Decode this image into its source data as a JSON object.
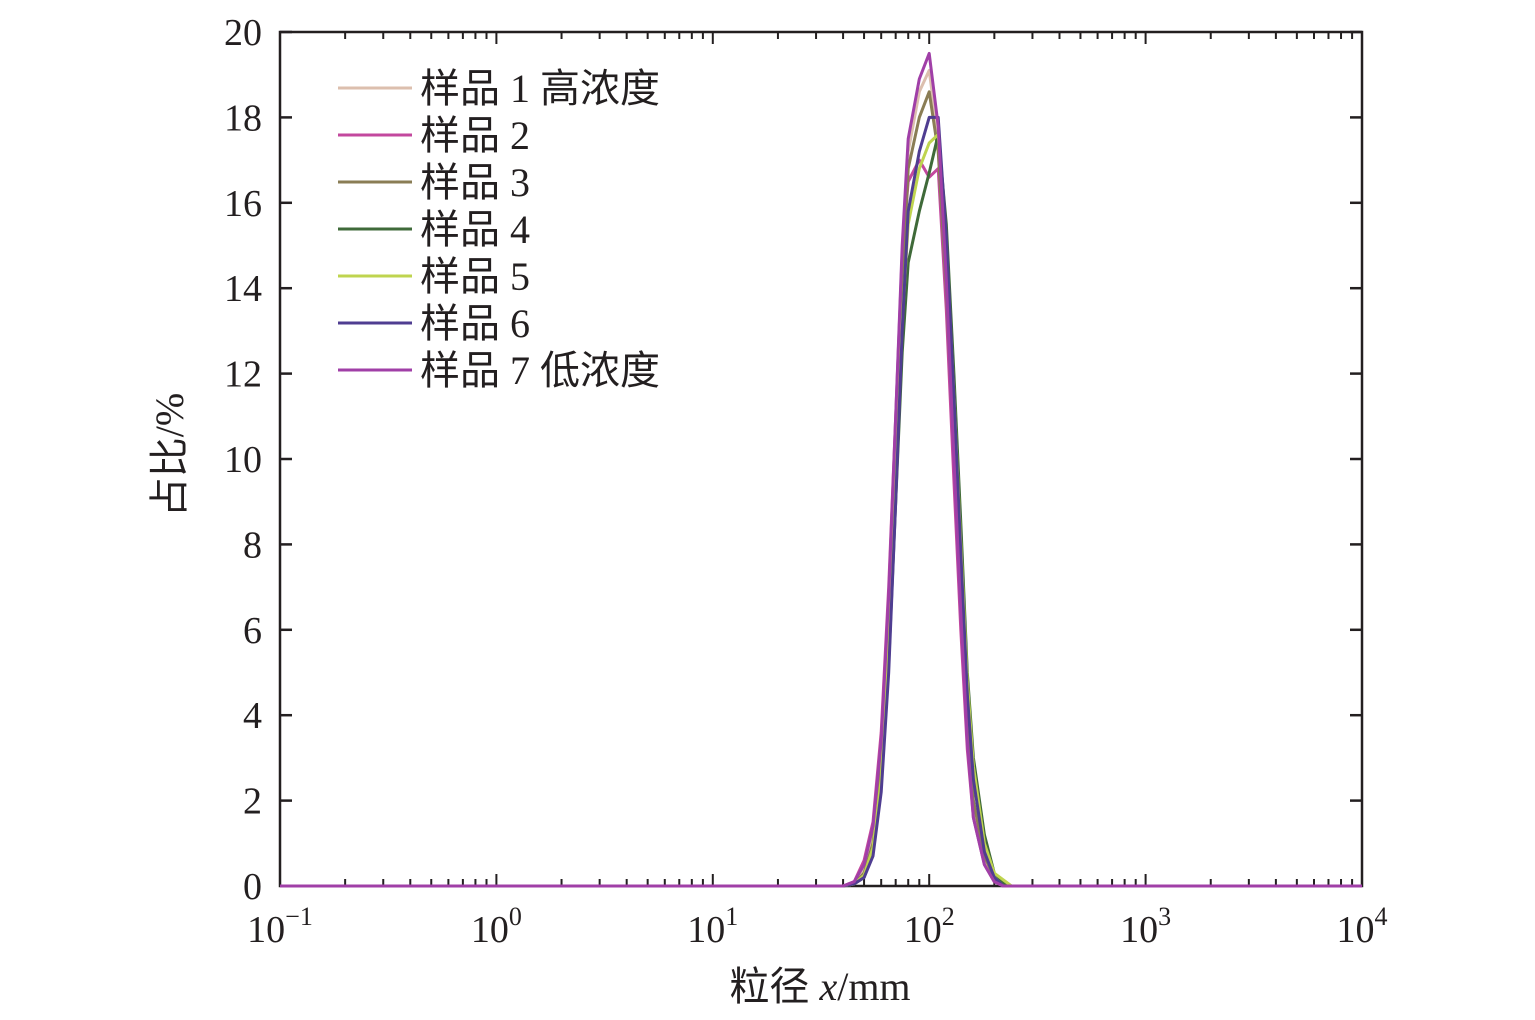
{
  "chart_data": {
    "type": "line",
    "xscale": "log",
    "xlim": [
      0.1,
      10000
    ],
    "ylim": [
      0,
      20
    ],
    "xlabel_prefix": "粒径 ",
    "xlabel_var": "x",
    "xlabel_unit": "/mm",
    "ylabel": "占比/%",
    "x_tick_bases": [
      "10",
      "10",
      "10",
      "10",
      "10",
      "10"
    ],
    "x_tick_exponents": [
      "−1",
      "0",
      "1",
      "2",
      "3",
      "4"
    ],
    "x_tick_values": [
      0.1,
      1,
      10,
      100,
      1000,
      10000
    ],
    "y_ticks": [
      0,
      2,
      4,
      6,
      8,
      10,
      12,
      14,
      16,
      18,
      20
    ],
    "legend_position": "top-left",
    "grid": false,
    "series": [
      {
        "name": "样品 1 高浓度",
        "color": "#dcbfae",
        "points": [
          [
            0.1,
            0
          ],
          [
            40,
            0
          ],
          [
            45,
            0.05
          ],
          [
            50,
            0.4
          ],
          [
            55,
            1.3
          ],
          [
            60,
            3.2
          ],
          [
            65,
            6.5
          ],
          [
            70,
            10.5
          ],
          [
            75,
            14.5
          ],
          [
            80,
            17.2
          ],
          [
            90,
            18.6
          ],
          [
            100,
            19.1
          ],
          [
            110,
            17.5
          ],
          [
            120,
            14.0
          ],
          [
            130,
            10.0
          ],
          [
            140,
            6.5
          ],
          [
            150,
            3.5
          ],
          [
            160,
            1.8
          ],
          [
            180,
            0.6
          ],
          [
            200,
            0.15
          ],
          [
            220,
            0
          ],
          [
            10000,
            0
          ]
        ]
      },
      {
        "name": "样品 2",
        "color": "#c3489e",
        "points": [
          [
            0.1,
            0
          ],
          [
            40,
            0
          ],
          [
            45,
            0.1
          ],
          [
            50,
            0.6
          ],
          [
            55,
            1.5
          ],
          [
            60,
            3.6
          ],
          [
            65,
            7.0
          ],
          [
            70,
            11.0
          ],
          [
            75,
            14.8
          ],
          [
            80,
            16.5
          ],
          [
            90,
            17.0
          ],
          [
            100,
            16.6
          ],
          [
            110,
            16.8
          ],
          [
            120,
            13.5
          ],
          [
            130,
            9.5
          ],
          [
            140,
            6.0
          ],
          [
            150,
            3.2
          ],
          [
            160,
            1.6
          ],
          [
            180,
            0.5
          ],
          [
            200,
            0.1
          ],
          [
            220,
            0
          ],
          [
            10000,
            0
          ]
        ]
      },
      {
        "name": "样品 3",
        "color": "#8a7d55",
        "points": [
          [
            0.1,
            0
          ],
          [
            40,
            0
          ],
          [
            45,
            0.05
          ],
          [
            50,
            0.3
          ],
          [
            55,
            1.0
          ],
          [
            60,
            2.8
          ],
          [
            65,
            6.0
          ],
          [
            70,
            10.0
          ],
          [
            75,
            14.0
          ],
          [
            80,
            16.8
          ],
          [
            90,
            18.0
          ],
          [
            100,
            18.6
          ],
          [
            110,
            17.2
          ],
          [
            120,
            14.0
          ],
          [
            130,
            10.2
          ],
          [
            140,
            6.8
          ],
          [
            150,
            3.8
          ],
          [
            160,
            2.0
          ],
          [
            180,
            0.7
          ],
          [
            200,
            0.2
          ],
          [
            220,
            0
          ],
          [
            10000,
            0
          ]
        ]
      },
      {
        "name": "样品 4",
        "color": "#3f6a39",
        "points": [
          [
            0.1,
            0
          ],
          [
            40,
            0
          ],
          [
            45,
            0.05
          ],
          [
            50,
            0.2
          ],
          [
            55,
            0.8
          ],
          [
            60,
            2.4
          ],
          [
            65,
            5.2
          ],
          [
            70,
            9.0
          ],
          [
            75,
            12.5
          ],
          [
            80,
            14.6
          ],
          [
            90,
            15.8
          ],
          [
            100,
            16.7
          ],
          [
            110,
            17.6
          ],
          [
            120,
            15.5
          ],
          [
            130,
            12.0
          ],
          [
            140,
            8.5
          ],
          [
            150,
            5.0
          ],
          [
            160,
            3.0
          ],
          [
            180,
            1.2
          ],
          [
            200,
            0.3
          ],
          [
            230,
            0
          ],
          [
            10000,
            0
          ]
        ]
      },
      {
        "name": "样品 5",
        "color": "#bfd44f",
        "points": [
          [
            0.1,
            0
          ],
          [
            40,
            0
          ],
          [
            45,
            0.05
          ],
          [
            50,
            0.25
          ],
          [
            55,
            0.9
          ],
          [
            60,
            2.5
          ],
          [
            65,
            5.5
          ],
          [
            70,
            9.4
          ],
          [
            75,
            13.2
          ],
          [
            80,
            15.5
          ],
          [
            90,
            16.8
          ],
          [
            100,
            17.4
          ],
          [
            110,
            17.6
          ],
          [
            120,
            15.0
          ],
          [
            130,
            11.5
          ],
          [
            140,
            8.0
          ],
          [
            150,
            4.8
          ],
          [
            160,
            2.8
          ],
          [
            180,
            1.0
          ],
          [
            200,
            0.3
          ],
          [
            240,
            0
          ],
          [
            10000,
            0
          ]
        ]
      },
      {
        "name": "样品 6",
        "color": "#4f3d91",
        "points": [
          [
            0.1,
            0
          ],
          [
            40,
            0
          ],
          [
            45,
            0.05
          ],
          [
            50,
            0.2
          ],
          [
            55,
            0.7
          ],
          [
            60,
            2.2
          ],
          [
            65,
            5.0
          ],
          [
            70,
            9.0
          ],
          [
            75,
            13.0
          ],
          [
            80,
            15.8
          ],
          [
            90,
            17.2
          ],
          [
            100,
            18.0
          ],
          [
            110,
            18.0
          ],
          [
            120,
            15.2
          ],
          [
            130,
            11.5
          ],
          [
            140,
            7.8
          ],
          [
            150,
            4.5
          ],
          [
            160,
            2.5
          ],
          [
            180,
            0.8
          ],
          [
            200,
            0.2
          ],
          [
            220,
            0
          ],
          [
            10000,
            0
          ]
        ]
      },
      {
        "name": "样品 7 低浓度",
        "color": "#a03fa7",
        "points": [
          [
            0.1,
            0
          ],
          [
            40,
            0
          ],
          [
            45,
            0.1
          ],
          [
            50,
            0.5
          ],
          [
            55,
            1.4
          ],
          [
            60,
            3.4
          ],
          [
            65,
            6.8
          ],
          [
            70,
            11.0
          ],
          [
            75,
            15.0
          ],
          [
            80,
            17.5
          ],
          [
            90,
            18.9
          ],
          [
            100,
            19.5
          ],
          [
            110,
            17.8
          ],
          [
            120,
            14.2
          ],
          [
            130,
            10.0
          ],
          [
            140,
            6.4
          ],
          [
            150,
            3.4
          ],
          [
            160,
            1.6
          ],
          [
            180,
            0.5
          ],
          [
            200,
            0.1
          ],
          [
            220,
            0
          ],
          [
            10000,
            0
          ]
        ]
      }
    ]
  }
}
